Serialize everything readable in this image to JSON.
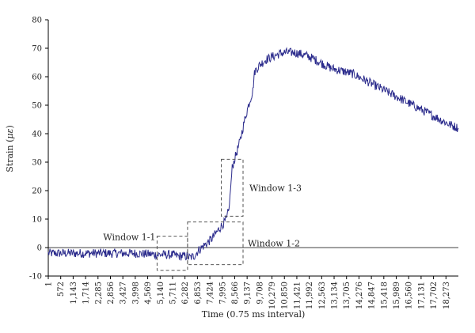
{
  "chart_data": {
    "type": "line",
    "title": "",
    "xlabel": "Time (0.75 ms interval)",
    "ylabel_prefix": "Strain (",
    "ylabel_unit": "με",
    "ylabel_suffix": ")",
    "xlim": [
      1,
      18844
    ],
    "ylim": [
      -10,
      80
    ],
    "yticks": [
      -10,
      0,
      10,
      20,
      30,
      40,
      50,
      60,
      70,
      80
    ],
    "xticks": [
      1,
      572,
      1143,
      1714,
      2285,
      2856,
      3427,
      3998,
      4569,
      5140,
      5711,
      6282,
      6853,
      7424,
      7995,
      8566,
      9137,
      9708,
      10279,
      10850,
      11421,
      11992,
      12563,
      13134,
      13705,
      14276,
      14847,
      15418,
      15989,
      16560,
      17131,
      17702,
      18273
    ],
    "xtick_labels": [
      "1",
      "572",
      "1,143",
      "1,714",
      "2,285",
      "2,856",
      "3,427",
      "3,998",
      "4,569",
      "5,140",
      "5,711",
      "6,282",
      "6,853",
      "7,424",
      "7,995",
      "8,566",
      "9,137",
      "9,708",
      "10,279",
      "10,850",
      "11,421",
      "11,992",
      "12,563",
      "13,134",
      "13,705",
      "14,276",
      "14,847",
      "15,418",
      "15,989",
      "16,560",
      "17,131",
      "17,702",
      "18,273"
    ],
    "grid": false,
    "series": [
      {
        "color": "#2b2b8c",
        "x": [
          1,
          1000,
          2000,
          3000,
          4000,
          5000,
          5700,
          6000,
          6300,
          6500,
          6700,
          6900,
          7200,
          7500,
          7800,
          8000,
          8200,
          8250,
          8300,
          8450,
          8600,
          8800,
          9000,
          9200,
          9400,
          9450,
          9500,
          9700,
          10000,
          10300,
          10600,
          10850,
          11100,
          11300,
          11600,
          12000,
          12500,
          13000,
          13500,
          14000,
          14500,
          15000,
          15500,
          16000,
          16500,
          17000,
          17500,
          18000,
          18500,
          18844
        ],
        "y": [
          -2,
          -2,
          -2,
          -2,
          -2,
          -2.5,
          -2.5,
          -3,
          -3,
          -3.5,
          -3,
          -1,
          1,
          3,
          6,
          8,
          10,
          12,
          13,
          28,
          32,
          37,
          44,
          50,
          55,
          60,
          62,
          64,
          66,
          67,
          68,
          68.5,
          68.5,
          68.5,
          68,
          67,
          65,
          63,
          62,
          61,
          59,
          57,
          55,
          53,
          51,
          49,
          47,
          45,
          43,
          42
        ]
      }
    ],
    "annotations": [
      {
        "label": "Window 1-1",
        "box": {
          "x0": 5000,
          "x1": 6400,
          "y0": -8,
          "y1": 4
        }
      },
      {
        "label": "Window 1-2",
        "box": {
          "x0": 6400,
          "x1": 8950,
          "y0": -6,
          "y1": 9
        }
      },
      {
        "label": "Window 1-3",
        "box": {
          "x0": 7950,
          "x1": 8950,
          "y0": 11,
          "y1": 31
        }
      }
    ]
  }
}
